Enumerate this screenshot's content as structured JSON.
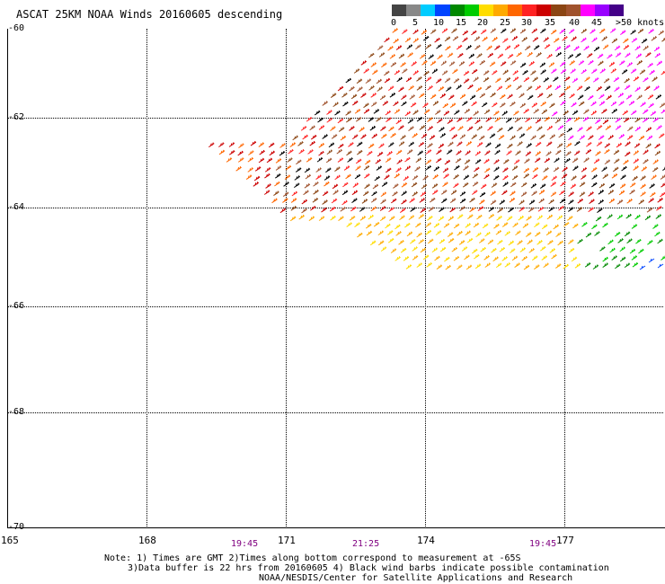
{
  "title": "ASCAT 25KM NOAA Winds 20160605 descending",
  "legend": {
    "colors": [
      "#444444",
      "#888888",
      "#00ccff",
      "#0044ff",
      "#008800",
      "#00cc00",
      "#ffdd00",
      "#ffaa00",
      "#ff6600",
      "#ff2222",
      "#cc0000",
      "#8b4513",
      "#a0522d",
      "#ff00ff",
      "#9900ff",
      "#440088"
    ],
    "labels": [
      "0",
      "5",
      "10",
      "15",
      "20",
      "25",
      "30",
      "35",
      "40",
      "45",
      ">50 knots"
    ]
  },
  "lat_labels": [
    "-60",
    "-62",
    "-64",
    "-66",
    "-68",
    "-70"
  ],
  "lon_labels": [
    "165",
    "168",
    "171",
    "174",
    "177"
  ],
  "time_labels": [
    "19:45",
    "21:25",
    "19:45"
  ],
  "notes": {
    "line1": "Note: 1) Times are GMT 2)Times along bottom correspond to measurement at -65S",
    "line2": "3)Data buffer is 22 hrs from 20160605 4) Black wind barbs indicate possible contamination",
    "line3": "NOAA/NESDIS/Center for Satellite Applications and Research"
  }
}
